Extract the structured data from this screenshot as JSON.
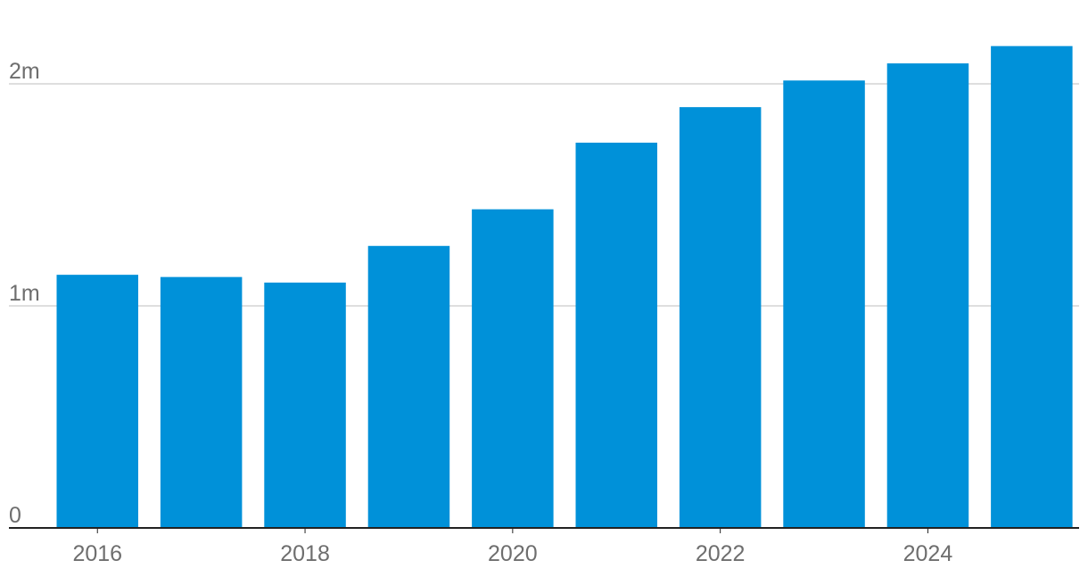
{
  "chart_data": {
    "type": "bar",
    "title": "",
    "xlabel": "",
    "ylabel": "",
    "categories": [
      "2016",
      "2017",
      "2018",
      "2019",
      "2020",
      "2021",
      "2022",
      "2023",
      "2024",
      "2025"
    ],
    "values": [
      1140000,
      1130000,
      1105000,
      1270000,
      1435000,
      1735000,
      1895000,
      2015000,
      2092000,
      2170000
    ],
    "ylim": [
      0,
      2250000
    ],
    "y_ticks": [
      {
        "value": 0,
        "label": "0"
      },
      {
        "value": 1000000,
        "label": "1m"
      },
      {
        "value": 2000000,
        "label": "2m"
      }
    ],
    "x_tick_labels": [
      "2016",
      "2018",
      "2020",
      "2022",
      "2024"
    ],
    "grid": true,
    "legend": "none",
    "colors": {
      "bar": "#0091d9",
      "grid": "#bdbdbd",
      "axis": "#222222",
      "label": "#6e6e6e"
    }
  }
}
